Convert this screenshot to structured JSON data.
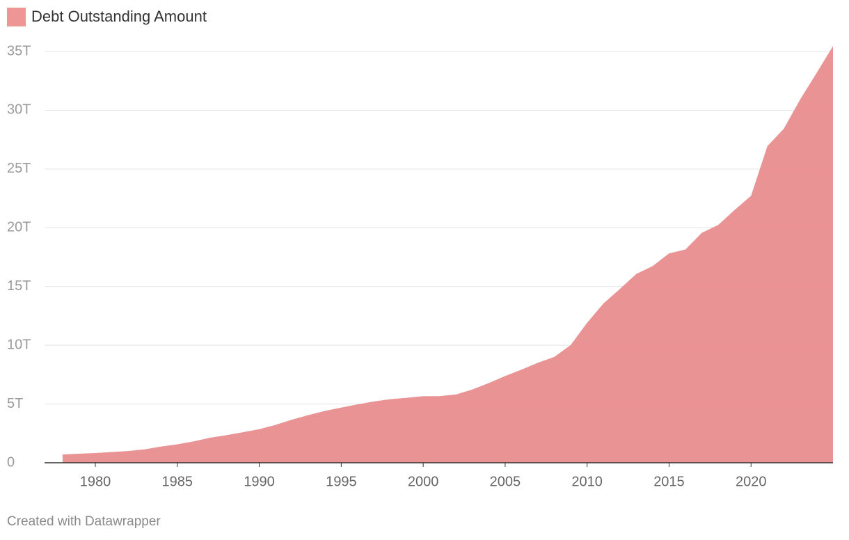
{
  "chart_data": {
    "type": "area",
    "legend": "Debt Outstanding Amount",
    "footer": "Created with Datawrapper",
    "color": "#e98f91",
    "x": [
      1978,
      1979,
      1980,
      1981,
      1982,
      1983,
      1984,
      1985,
      1986,
      1987,
      1988,
      1989,
      1990,
      1991,
      1992,
      1993,
      1994,
      1995,
      1996,
      1997,
      1998,
      1999,
      2000,
      2001,
      2002,
      2003,
      2004,
      2005,
      2006,
      2007,
      2008,
      2009,
      2010,
      2011,
      2012,
      2013,
      2014,
      2015,
      2016,
      2017,
      2018,
      2019,
      2020,
      2021,
      2022,
      2023,
      2024,
      2025
    ],
    "values": [
      0.7,
      0.77,
      0.83,
      0.91,
      1.0,
      1.14,
      1.38,
      1.57,
      1.82,
      2.13,
      2.35,
      2.6,
      2.86,
      3.23,
      3.67,
      4.06,
      4.41,
      4.69,
      4.97,
      5.22,
      5.41,
      5.53,
      5.66,
      5.67,
      5.81,
      6.23,
      6.78,
      7.38,
      7.93,
      8.51,
      9.01,
      10.02,
      11.91,
      13.56,
      14.79,
      16.07,
      16.74,
      17.82,
      18.15,
      19.57,
      20.24,
      21.52,
      22.72,
      26.95,
      28.43,
      30.93,
      33.17,
      35.46
    ],
    "xlim": [
      1976.9,
      2025
    ],
    "xticks": [
      1980,
      1985,
      1990,
      1995,
      2000,
      2005,
      2010,
      2015,
      2020
    ],
    "ylim": [
      0,
      35
    ],
    "yticks": [
      0,
      {
        "value": 5,
        "label": "5T"
      },
      {
        "value": 10,
        "label": "10T"
      },
      {
        "value": 15,
        "label": "15T"
      },
      {
        "value": 20,
        "label": "20T"
      },
      {
        "value": 25,
        "label": "25T"
      },
      {
        "value": 30,
        "label": "30T"
      },
      {
        "value": 35,
        "label": "35T"
      }
    ],
    "grid": true
  }
}
